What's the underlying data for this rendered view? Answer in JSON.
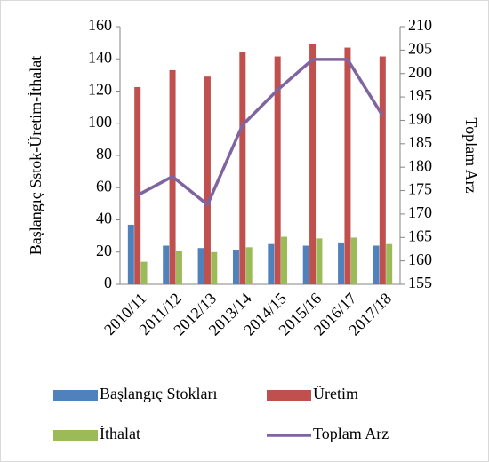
{
  "chart_data": {
    "type": "bar",
    "categories": [
      "2010/11",
      "2011/12",
      "2012/13",
      "2013/14",
      "2014/15",
      "2015/16",
      "2016/17",
      "2017/18"
    ],
    "series": [
      {
        "name": "Başlangıç Stokları",
        "color": "#4f81bd",
        "values": [
          37,
          24,
          22.5,
          21.5,
          25,
          24,
          26,
          24
        ]
      },
      {
        "name": "Üretim",
        "color": "#c0504d",
        "values": [
          122.5,
          133,
          129,
          144,
          141.5,
          149.5,
          147,
          141.5
        ]
      },
      {
        "name": "İthalat",
        "color": "#9bbb59",
        "values": [
          14,
          20.5,
          20,
          23,
          29.5,
          28.5,
          29,
          25
        ]
      },
      {
        "name": "Toplam Arz",
        "color": "#8064a2",
        "type": "line",
        "axis": "y2",
        "values": [
          174,
          178,
          172,
          189,
          196.5,
          203,
          203,
          191
        ]
      }
    ],
    "y_label": "Başlangıç Sstok-Üretim-İthalat",
    "y2_label": "Toplam Arz",
    "ylim": [
      0,
      160
    ],
    "yticks": [
      0,
      20,
      40,
      60,
      80,
      100,
      120,
      140,
      160
    ],
    "y2lim": [
      155,
      210
    ],
    "y2ticks": [
      155,
      160,
      165,
      170,
      175,
      180,
      185,
      190,
      195,
      200,
      205,
      210
    ],
    "legend": "bottom"
  }
}
